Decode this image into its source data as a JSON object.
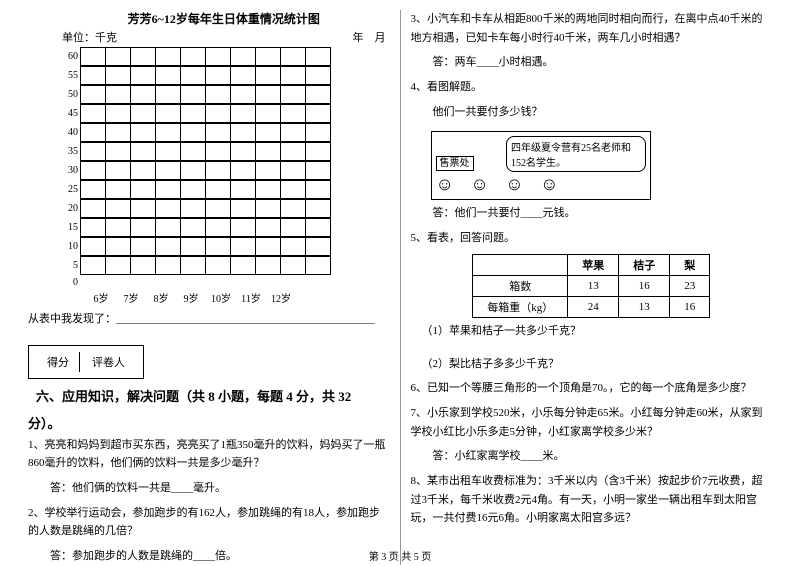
{
  "chart": {
    "title": "芳芳6~12岁每年生日体重情况统计图",
    "unit": "单位：千克",
    "date": "年　月",
    "y_ticks": [
      "60",
      "55",
      "50",
      "45",
      "40",
      "35",
      "30",
      "25",
      "20",
      "15",
      "10",
      "5",
      "0"
    ],
    "x_ticks": [
      "6岁",
      "7岁",
      "8岁",
      "9岁",
      "10岁",
      "11岁",
      "12岁"
    ],
    "cols": 10,
    "rows": 12,
    "line_color": "#000",
    "bg_color": "#ffffff"
  },
  "observe": "从表中我发现了：_______________________________________________",
  "score_box": {
    "a": "得分",
    "b": "评卷人"
  },
  "section6_title": "六、应用知识，解决问题（共 8 小题，每题 4 分，共 32",
  "section6_title2": "分）。",
  "q1": "1、亮亮和妈妈到超市买东西，亮亮买了1瓶350毫升的饮料，妈妈买了一瓶860毫升的饮料，他们俩的饮料一共是多少毫升？",
  "a1": "答：他们俩的饮料一共是____毫升。",
  "q2": "2、学校举行运动会，参加跑步的有162人，参加跳绳的有18人，参加跑步的人数是跳绳的几倍？",
  "a2": "答：参加跑步的人数是跳绳的____倍。",
  "q3": "3、小汽车和卡车从相距800千米的两地同时相向而行，在离中点40千米的地方相遇，已知卡车每小时行40千米，两车几小时相遇？",
  "a3": "答：两车____小时相遇。",
  "q4": "4、看图解题。",
  "q4b": "他们一共要付多少钱？",
  "illus": {
    "booth": "售票处",
    "bubble": "四年级夏令营有25名老师和152名学生。"
  },
  "a4": "答：他们一共要付____元钱。",
  "q5": "5、看表，回答问题。",
  "table": {
    "headers": [
      "",
      "苹果",
      "桔子",
      "梨"
    ],
    "rows": [
      [
        "箱数",
        "13",
        "16",
        "23"
      ],
      [
        "每箱重（kg）",
        "24",
        "13",
        "16"
      ]
    ]
  },
  "q5_1": "（1）苹果和桔子一共多少千克？",
  "q5_2": "（2）梨比桔子多多少千克？",
  "q6": "6、已知一个等腰三角形的一个顶角是70。，它的每一个底角是多少度？",
  "q7": "7、小乐家到学校520米，小乐每分钟走65米。小红每分钟走60米，从家到学校小红比小乐多走5分钟，小红家离学校多少米？",
  "a7": "答：小红家离学校____米。",
  "q8": "8、某市出租车收费标准为：3千米以内（含3千米）按起步价7元收费，超过3千米，每千米收费2元4角。有一天，小明一家坐一辆出租车到太阳宫玩，一共付费16元6角。小明家离太阳宫多远？",
  "footer": "第 3 页 共 5 页"
}
